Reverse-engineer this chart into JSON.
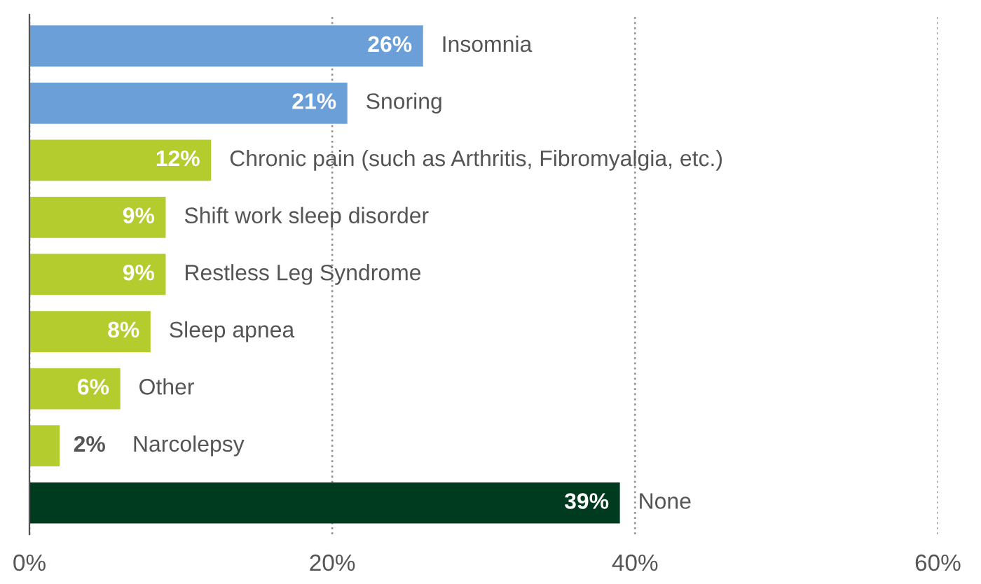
{
  "chart_data": {
    "type": "bar",
    "orientation": "horizontal",
    "categories": [
      "Insomnia",
      "Snoring",
      "Chronic pain (such as Arthritis, Fibromyalgia, etc.)",
      "Shift work sleep disorder",
      "Restless Leg Syndrome",
      "Sleep apnea",
      "Other",
      "Narcolepsy",
      "None"
    ],
    "values": [
      26,
      21,
      12,
      9,
      9,
      8,
      6,
      2,
      39
    ],
    "colors": [
      "#6a9fd8",
      "#6a9fd8",
      "#b5cc2e",
      "#b5cc2e",
      "#b5cc2e",
      "#b5cc2e",
      "#b5cc2e",
      "#b5cc2e",
      "#003b1f"
    ],
    "value_labels": [
      "26%",
      "21%",
      "12%",
      "9%",
      "9%",
      "8%",
      "6%",
      "2%",
      "39%"
    ],
    "xlim": [
      0,
      60
    ],
    "xticks": [
      {
        "value": 0,
        "label": "0%"
      },
      {
        "value": 20,
        "label": "20%"
      },
      {
        "value": 40,
        "label": "40%"
      },
      {
        "value": 60,
        "label": "60%"
      }
    ],
    "grid": "x",
    "tick_labels": "x"
  }
}
